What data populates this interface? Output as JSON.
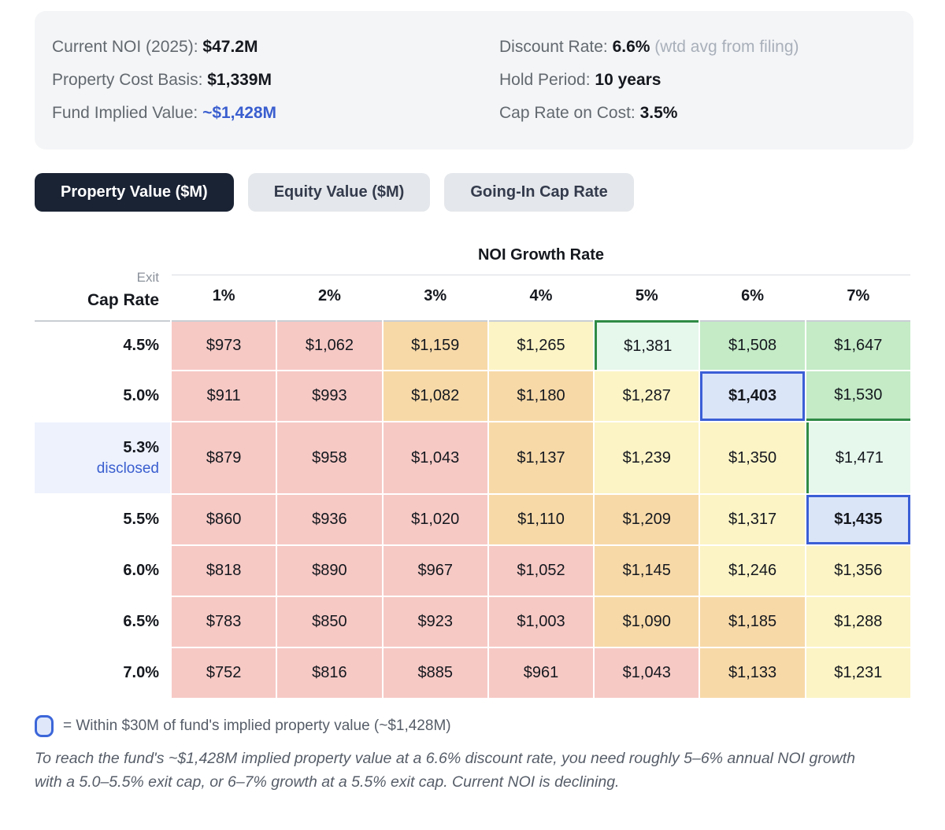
{
  "summary": {
    "left": [
      {
        "label": "Current NOI (2025):",
        "value": "$47.2M"
      },
      {
        "label": "Property Cost Basis:",
        "value": "$1,339M"
      },
      {
        "label": "Fund Implied Value:",
        "value": "~$1,428M"
      }
    ],
    "right": [
      {
        "label": "Discount Rate:",
        "value": "6.6%",
        "suffix": "(wtd avg from filing)"
      },
      {
        "label": "Hold Period:",
        "value": "10 years",
        "suffix": ""
      },
      {
        "label": "Cap Rate on Cost:",
        "value": "3.5%",
        "suffix": ""
      }
    ]
  },
  "tabs": [
    {
      "label": "Property Value ($M)",
      "active": true
    },
    {
      "label": "Equity Value ($M)",
      "active": false
    },
    {
      "label": "Going-In Cap Rate",
      "active": false
    }
  ],
  "matrix": {
    "column_group_label": "NOI Growth Rate",
    "row_group_label_line1": "Exit",
    "row_group_label_line2": "Cap Rate",
    "columns": [
      "1%",
      "2%",
      "3%",
      "4%",
      "5%",
      "6%",
      "7%"
    ],
    "rows": [
      {
        "label": "4.5%",
        "sublabel": "",
        "highlight": false,
        "cells": [
          {
            "v": "$973",
            "tone": "red"
          },
          {
            "v": "$1,062",
            "tone": "red"
          },
          {
            "v": "$1,159",
            "tone": "orange"
          },
          {
            "v": "$1,265",
            "tone": "yellow"
          },
          {
            "v": "$1,381",
            "tone": "green-light",
            "border": "green-top-left"
          },
          {
            "v": "$1,508",
            "tone": "green"
          },
          {
            "v": "$1,647",
            "tone": "green"
          }
        ]
      },
      {
        "label": "5.0%",
        "sublabel": "",
        "highlight": false,
        "cells": [
          {
            "v": "$911",
            "tone": "red"
          },
          {
            "v": "$993",
            "tone": "red"
          },
          {
            "v": "$1,082",
            "tone": "orange"
          },
          {
            "v": "$1,180",
            "tone": "orange"
          },
          {
            "v": "$1,287",
            "tone": "yellow"
          },
          {
            "v": "$1,403",
            "tone": "blue",
            "bold": true,
            "border": "blue-box"
          },
          {
            "v": "$1,530",
            "tone": "green",
            "border": "green-bottom"
          }
        ]
      },
      {
        "label": "5.3%",
        "sublabel": "disclosed",
        "highlight": true,
        "cells": [
          {
            "v": "$879",
            "tone": "red"
          },
          {
            "v": "$958",
            "tone": "red"
          },
          {
            "v": "$1,043",
            "tone": "red"
          },
          {
            "v": "$1,137",
            "tone": "orange"
          },
          {
            "v": "$1,239",
            "tone": "yellow"
          },
          {
            "v": "$1,350",
            "tone": "yellow"
          },
          {
            "v": "$1,471",
            "tone": "green-light",
            "border": "green-left"
          }
        ]
      },
      {
        "label": "5.5%",
        "sublabel": "",
        "highlight": false,
        "cells": [
          {
            "v": "$860",
            "tone": "red"
          },
          {
            "v": "$936",
            "tone": "red"
          },
          {
            "v": "$1,020",
            "tone": "red"
          },
          {
            "v": "$1,110",
            "tone": "orange"
          },
          {
            "v": "$1,209",
            "tone": "orange"
          },
          {
            "v": "$1,317",
            "tone": "yellow"
          },
          {
            "v": "$1,435",
            "tone": "blue",
            "bold": true,
            "border": "blue-box"
          }
        ]
      },
      {
        "label": "6.0%",
        "sublabel": "",
        "highlight": false,
        "cells": [
          {
            "v": "$818",
            "tone": "red"
          },
          {
            "v": "$890",
            "tone": "red"
          },
          {
            "v": "$967",
            "tone": "red"
          },
          {
            "v": "$1,052",
            "tone": "red"
          },
          {
            "v": "$1,145",
            "tone": "orange"
          },
          {
            "v": "$1,246",
            "tone": "yellow"
          },
          {
            "v": "$1,356",
            "tone": "yellow"
          }
        ]
      },
      {
        "label": "6.5%",
        "sublabel": "",
        "highlight": false,
        "cells": [
          {
            "v": "$783",
            "tone": "red"
          },
          {
            "v": "$850",
            "tone": "red"
          },
          {
            "v": "$923",
            "tone": "red"
          },
          {
            "v": "$1,003",
            "tone": "red"
          },
          {
            "v": "$1,090",
            "tone": "orange"
          },
          {
            "v": "$1,185",
            "tone": "orange"
          },
          {
            "v": "$1,288",
            "tone": "yellow"
          }
        ]
      },
      {
        "label": "7.0%",
        "sublabel": "",
        "highlight": false,
        "cells": [
          {
            "v": "$752",
            "tone": "red"
          },
          {
            "v": "$816",
            "tone": "red"
          },
          {
            "v": "$885",
            "tone": "red"
          },
          {
            "v": "$961",
            "tone": "red"
          },
          {
            "v": "$1,043",
            "tone": "red"
          },
          {
            "v": "$1,133",
            "tone": "orange"
          },
          {
            "v": "$1,231",
            "tone": "yellow"
          }
        ]
      }
    ]
  },
  "legend": {
    "text": "= Within $30M of fund's implied property value (~$1,428M)"
  },
  "note": "To reach the fund's ~$1,428M implied property value at a 6.6% discount rate, you need roughly 5–6% annual NOI growth with a 5.0–5.5% exit cap, or 6–7% growth at a 5.5% exit cap. Current NOI is declining.",
  "colors": {
    "accent_blue": "#3a5ecf",
    "panel_bg": "#f4f5f7",
    "tab_active_bg": "#1a2334",
    "tab_inactive_bg": "#e4e7eb",
    "tone_red": "#f6c9c5",
    "tone_orange": "#f7d9a8",
    "tone_yellow": "#fcf4c5",
    "tone_green_light": "#e6f7ec",
    "tone_green": "#c4ebc6",
    "tone_blue": "#dbe5f8",
    "border_green": "#2f8b45",
    "border_blue": "#3b5ed6",
    "highlight_row_bg": "#edf2fd"
  }
}
